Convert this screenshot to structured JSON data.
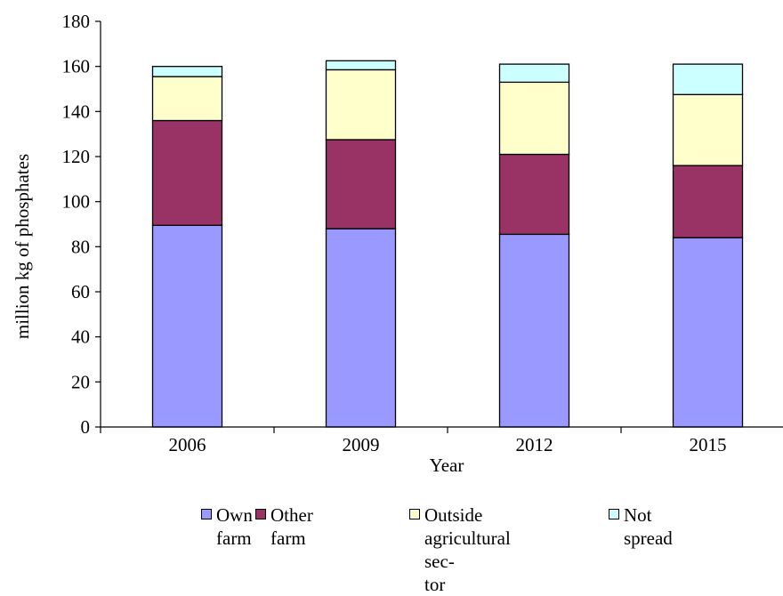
{
  "chart_data": {
    "type": "bar",
    "stacked": true,
    "categories": [
      "2006",
      "2009",
      "2012",
      "2015"
    ],
    "series": [
      {
        "name": "Own farm",
        "values": [
          89.5,
          88,
          85.5,
          84
        ],
        "color": "#9999ff"
      },
      {
        "name": "Other\nfarm",
        "values": [
          46.5,
          39.5,
          35.5,
          32
        ],
        "color": "#993366"
      },
      {
        "name": "Outside\nagricultural sec-\ntor",
        "values": [
          19.5,
          31,
          32,
          31.5
        ],
        "color": "#ffffcc"
      },
      {
        "name": "Not spread",
        "values": [
          4.5,
          4,
          8,
          13.5
        ],
        "color": "#ccffff"
      }
    ],
    "xlabel": "Year",
    "ylabel": "million kg of phosphates",
    "ylim": [
      0,
      180
    ],
    "yticks": [
      "0",
      "20",
      "40",
      "60",
      "80",
      "100",
      "120",
      "140",
      "160",
      "180"
    ],
    "grid": false,
    "legend_position": "bottom"
  }
}
